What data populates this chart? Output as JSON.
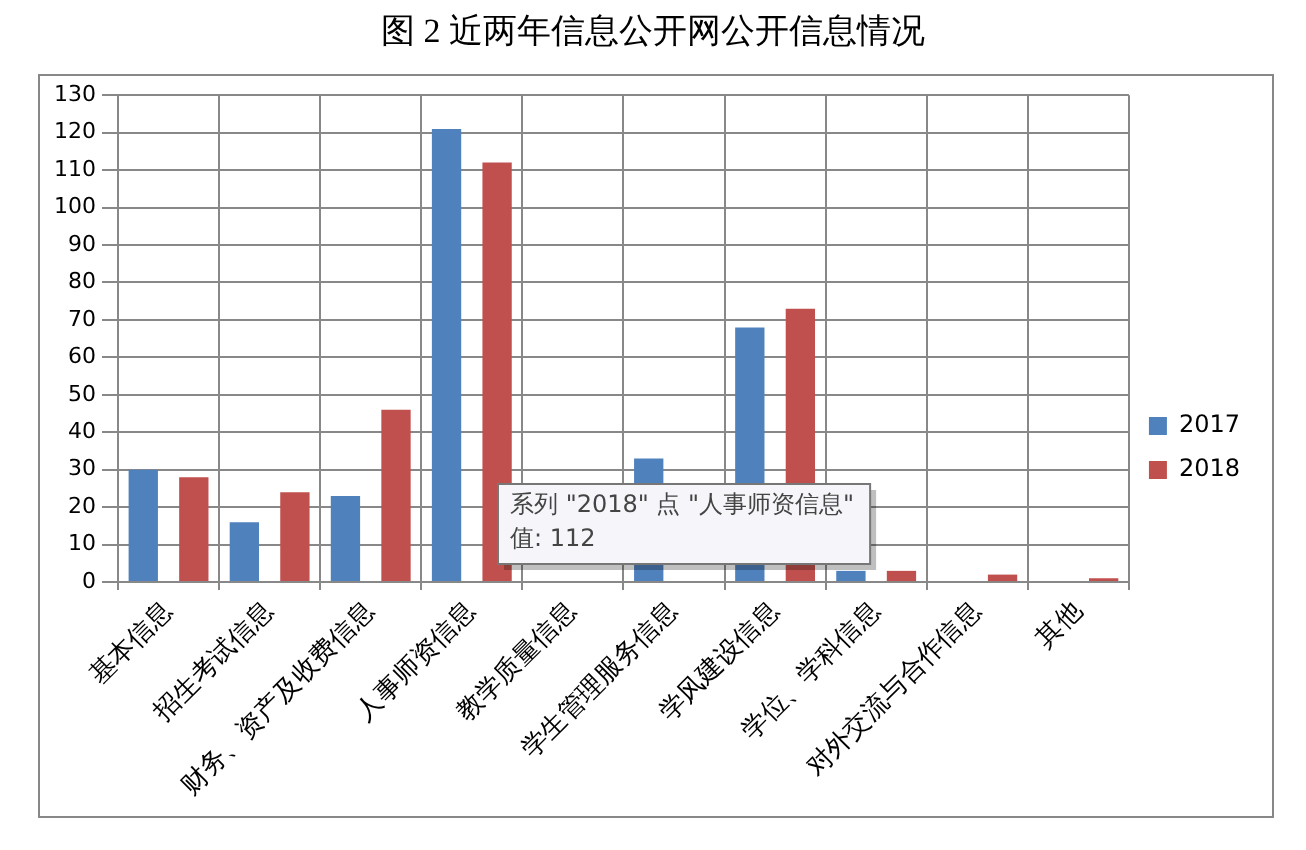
{
  "chart_data": {
    "type": "bar",
    "title": "图 2  近两年信息公开网公开信息情况",
    "categories": [
      "基本信息",
      "招生考试信息",
      "财务、资产及收费信息",
      "人事师资信息",
      "教学质量信息",
      "学生管理服务信息",
      "学风建设信息",
      "学位、学科信息",
      "对外交流与合作信息",
      "其他"
    ],
    "series": [
      {
        "name": "2017",
        "color": "#4f81bd",
        "values": [
          30,
          16,
          23,
          121,
          null,
          33,
          68,
          3,
          0,
          0
        ]
      },
      {
        "name": "2018",
        "color": "#c0504d",
        "values": [
          28,
          24,
          46,
          112,
          null,
          null,
          73,
          3,
          2,
          1
        ]
      }
    ],
    "ylim": [
      0,
      130
    ],
    "yticks": [
      0,
      10,
      20,
      30,
      40,
      50,
      60,
      70,
      80,
      90,
      100,
      110,
      120,
      130
    ],
    "grid": true,
    "legend": "right",
    "annotations": [
      "系列 \"2018\" 点 \"人事师资信息\"\n值: 112"
    ]
  }
}
